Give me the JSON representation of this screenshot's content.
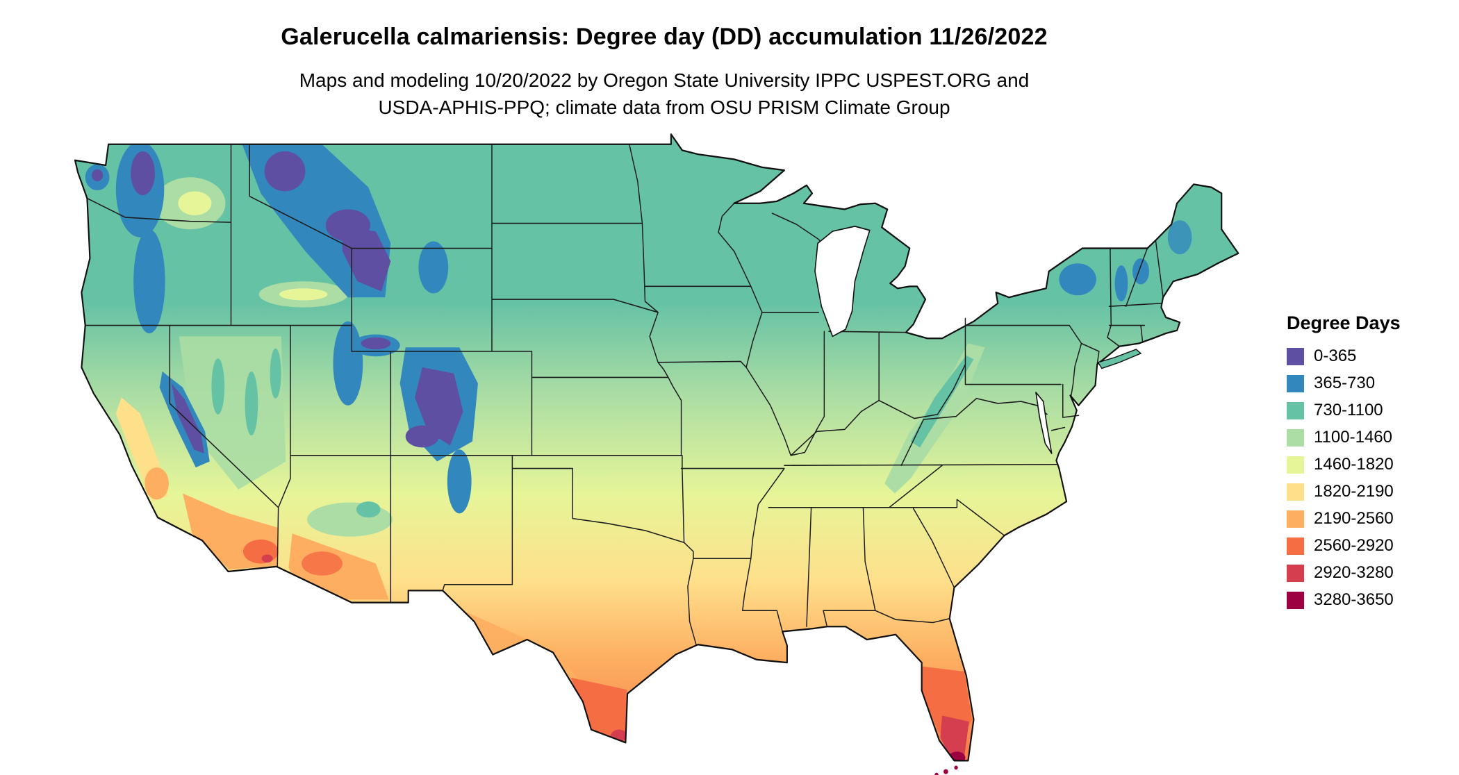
{
  "header": {
    "title": "Galerucella calmariensis: Degree day (DD) accumulation 11/26/2022",
    "subtitle_line1": "Maps and modeling 10/20/2022 by Oregon State University IPPC USPEST.ORG and",
    "subtitle_line2": "USDA-APHIS-PPQ; climate data from OSU PRISM Climate Group"
  },
  "palette": [
    "#5e4fa2",
    "#3288bd",
    "#66c2a5",
    "#abdda4",
    "#e6f598",
    "#fee08b",
    "#fdae61",
    "#f46d43",
    "#d53e4f",
    "#9e0142"
  ],
  "legend": {
    "title": "Degree Days",
    "entries": [
      {
        "label": "0-365",
        "palette_index": 0
      },
      {
        "label": "365-730",
        "palette_index": 1
      },
      {
        "label": "730-1100",
        "palette_index": 2
      },
      {
        "label": "1100-1460",
        "palette_index": 3
      },
      {
        "label": "1460-1820",
        "palette_index": 4
      },
      {
        "label": "1820-2190",
        "palette_index": 5
      },
      {
        "label": "2190-2560",
        "palette_index": 6
      },
      {
        "label": "2560-2920",
        "palette_index": 7
      },
      {
        "label": "2920-3280",
        "palette_index": 8
      },
      {
        "label": "3280-3650",
        "palette_index": 9
      }
    ]
  },
  "map": {
    "region": "Continental United States",
    "border_color": "#1b1b1b",
    "water_color": "#ffffff"
  }
}
